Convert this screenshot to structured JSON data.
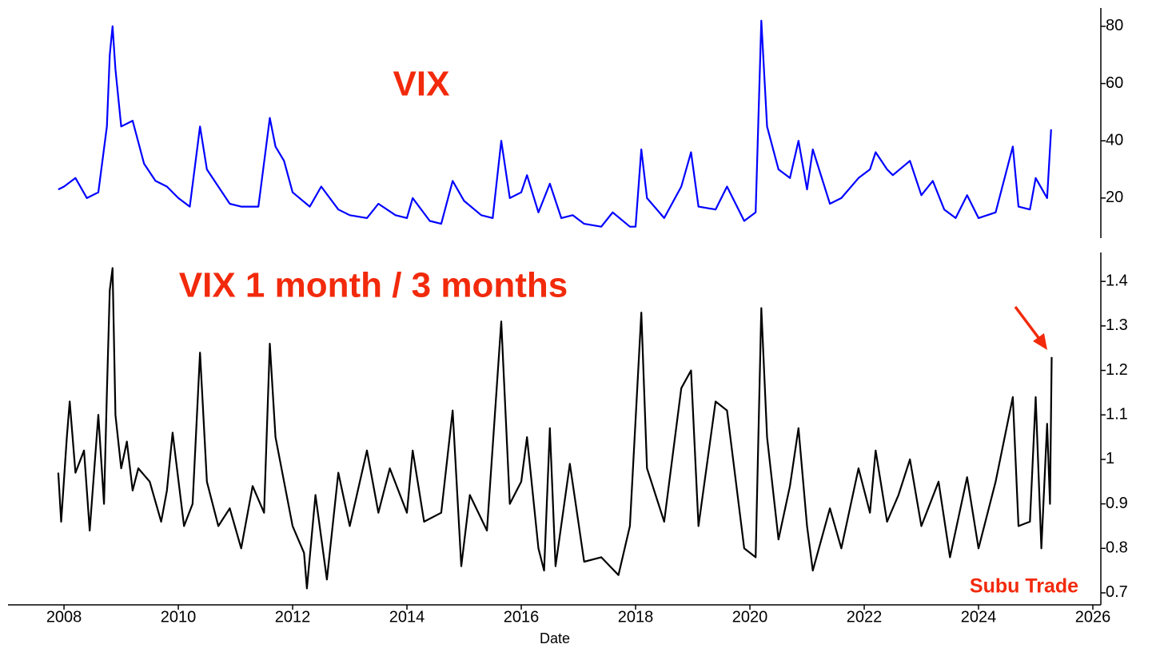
{
  "chart_data": [
    {
      "type": "line",
      "title": "VIX",
      "x": [
        2007.9,
        2008.0,
        2008.2,
        2008.4,
        2008.6,
        2008.75,
        2008.8,
        2008.85,
        2008.9,
        2009.0,
        2009.2,
        2009.4,
        2009.6,
        2009.8,
        2010.0,
        2010.2,
        2010.38,
        2010.5,
        2010.7,
        2010.9,
        2011.1,
        2011.4,
        2011.6,
        2011.7,
        2011.85,
        2012.0,
        2012.3,
        2012.5,
        2012.8,
        2013.0,
        2013.3,
        2013.5,
        2013.8,
        2014.0,
        2014.1,
        2014.4,
        2014.6,
        2014.8,
        2015.0,
        2015.3,
        2015.5,
        2015.65,
        2015.8,
        2016.0,
        2016.1,
        2016.3,
        2016.5,
        2016.7,
        2016.9,
        2017.1,
        2017.4,
        2017.6,
        2017.9,
        2018.0,
        2018.1,
        2018.2,
        2018.5,
        2018.8,
        2018.97,
        2019.1,
        2019.4,
        2019.6,
        2019.9,
        2020.1,
        2020.2,
        2020.3,
        2020.5,
        2020.7,
        2020.85,
        2021.0,
        2021.1,
        2021.4,
        2021.6,
        2021.9,
        2022.1,
        2022.2,
        2022.4,
        2022.5,
        2022.8,
        2023.0,
        2023.2,
        2023.4,
        2023.6,
        2023.8,
        2024.0,
        2024.3,
        2024.6,
        2024.7,
        2024.9,
        2025.0,
        2025.2,
        2025.27
      ],
      "series": [
        {
          "color": "#0000ff",
          "values": [
            23,
            24,
            27,
            20,
            22,
            45,
            70,
            80,
            65,
            45,
            47,
            32,
            26,
            24,
            20,
            17,
            45,
            30,
            24,
            18,
            17,
            17,
            48,
            38,
            33,
            22,
            17,
            24,
            16,
            14,
            13,
            18,
            14,
            13,
            20,
            12,
            11,
            26,
            19,
            14,
            13,
            40,
            20,
            22,
            28,
            15,
            25,
            13,
            14,
            11,
            10,
            15,
            10,
            10,
            37,
            20,
            13,
            24,
            36,
            17,
            16,
            24,
            12,
            15,
            82,
            45,
            30,
            27,
            40,
            23,
            37,
            18,
            20,
            27,
            30,
            36,
            30,
            28,
            33,
            21,
            26,
            16,
            13,
            21,
            13,
            15,
            38,
            17,
            16,
            27,
            20,
            44
          ]
        }
      ],
      "xlim": [
        2007.02,
        2026.14
      ],
      "ylim": [
        6,
        86.4
      ],
      "yticks": [
        20,
        40,
        60,
        80
      ]
    },
    {
      "type": "line",
      "title": "VIX 1 month / 3 months",
      "xlabel": "Date",
      "annotation": "Subu Trade",
      "x": [
        2007.9,
        2007.95,
        2008.05,
        2008.1,
        2008.2,
        2008.35,
        2008.45,
        2008.6,
        2008.7,
        2008.75,
        2008.8,
        2008.85,
        2008.9,
        2009.0,
        2009.1,
        2009.2,
        2009.3,
        2009.5,
        2009.7,
        2009.8,
        2009.9,
        2010.1,
        2010.25,
        2010.38,
        2010.5,
        2010.7,
        2010.9,
        2011.1,
        2011.3,
        2011.5,
        2011.6,
        2011.7,
        2011.85,
        2012.0,
        2012.2,
        2012.25,
        2012.4,
        2012.6,
        2012.8,
        2013.0,
        2013.3,
        2013.5,
        2013.7,
        2014.0,
        2014.1,
        2014.3,
        2014.6,
        2014.8,
        2014.95,
        2015.1,
        2015.4,
        2015.65,
        2015.8,
        2016.0,
        2016.1,
        2016.3,
        2016.4,
        2016.5,
        2016.6,
        2016.85,
        2017.1,
        2017.4,
        2017.7,
        2017.9,
        2018.1,
        2018.2,
        2018.5,
        2018.8,
        2018.97,
        2019.1,
        2019.4,
        2019.6,
        2019.9,
        2020.1,
        2020.2,
        2020.3,
        2020.5,
        2020.7,
        2020.85,
        2021.0,
        2021.1,
        2021.4,
        2021.6,
        2021.9,
        2022.1,
        2022.2,
        2022.4,
        2022.6,
        2022.8,
        2023.0,
        2023.3,
        2023.5,
        2023.8,
        2024.0,
        2024.3,
        2024.6,
        2024.7,
        2024.9,
        2025.0,
        2025.1,
        2025.2,
        2025.25,
        2025.28
      ],
      "series": [
        {
          "color": "#000000",
          "values": [
            0.97,
            0.86,
            1.05,
            1.13,
            0.97,
            1.02,
            0.84,
            1.1,
            0.9,
            1.15,
            1.38,
            1.43,
            1.1,
            0.98,
            1.04,
            0.93,
            0.98,
            0.95,
            0.86,
            0.93,
            1.06,
            0.85,
            0.9,
            1.24,
            0.95,
            0.85,
            0.89,
            0.8,
            0.94,
            0.88,
            1.26,
            1.05,
            0.95,
            0.85,
            0.79,
            0.71,
            0.92,
            0.73,
            0.97,
            0.85,
            1.02,
            0.88,
            0.98,
            0.88,
            1.02,
            0.86,
            0.88,
            1.11,
            0.76,
            0.92,
            0.84,
            1.31,
            0.9,
            0.95,
            1.05,
            0.8,
            0.75,
            1.07,
            0.76,
            0.99,
            0.77,
            0.78,
            0.74,
            0.85,
            1.33,
            0.98,
            0.86,
            1.16,
            1.2,
            0.85,
            1.13,
            1.11,
            0.8,
            0.78,
            1.34,
            1.05,
            0.82,
            0.94,
            1.07,
            0.85,
            0.75,
            0.89,
            0.8,
            0.98,
            0.88,
            1.02,
            0.86,
            0.92,
            1.0,
            0.85,
            0.95,
            0.78,
            0.96,
            0.8,
            0.95,
            1.14,
            0.85,
            0.86,
            1.14,
            0.8,
            1.08,
            0.9,
            1.23
          ]
        }
      ],
      "xlim": [
        2007.02,
        2026.14
      ],
      "ylim": [
        0.673,
        1.465
      ],
      "yticks": [
        0.7,
        0.8,
        0.9,
        1.0,
        {
          "value": 1.1,
          "label": "1.1"
        },
        1.2,
        1.3,
        1.4
      ],
      "xticks": [
        2008,
        2010,
        2012,
        2014,
        2016,
        2018,
        2020,
        2022,
        2024,
        2026
      ]
    }
  ]
}
